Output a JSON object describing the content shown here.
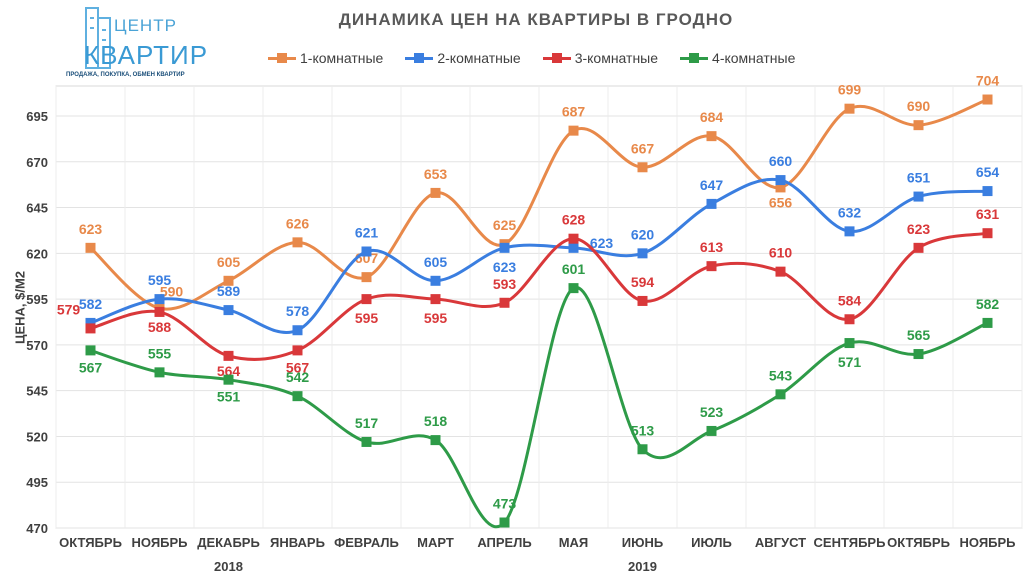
{
  "logo": {
    "line1": "ЦЕНТР",
    "line2": "КВАРТИР",
    "tagline": "ПРОДАЖА, ПОКУПКА, ОБМЕН КВАРТИР"
  },
  "chart_data": {
    "type": "line",
    "title": "ДИНАМИКА ЦЕН НА КВАРТИРЫ В ГРОДНО",
    "ylabel": "ЦЕНА, $/М2",
    "xlabel": "",
    "categories": [
      "ОКТЯБРЬ",
      "НОЯБРЬ",
      "ДЕКАБРЬ",
      "ЯНВАРЬ",
      "ФЕВРАЛЬ",
      "МАРТ",
      "АПРЕЛЬ",
      "МАЯ",
      "ИЮНЬ",
      "ИЮЛЬ",
      "АВГУСТ",
      "СЕНТЯБРЬ",
      "ОКТЯБРЬ",
      "НОЯБРЬ"
    ],
    "year_labels": [
      {
        "text": "2018",
        "category_index": 2
      },
      {
        "text": "2019",
        "category_index": 8
      }
    ],
    "yticks": [
      470,
      495,
      520,
      545,
      570,
      595,
      620,
      645,
      670,
      695
    ],
    "ylim": [
      470,
      700
    ],
    "grid": true,
    "legend": "top",
    "series": [
      {
        "name": "1-комнатные",
        "color": "#e8894a",
        "values": [
          623,
          590,
          605,
          626,
          607,
          653,
          625,
          687,
          667,
          684,
          656,
          699,
          690,
          704
        ]
      },
      {
        "name": "2-комнатные",
        "color": "#3a7ee0",
        "values": [
          582,
          595,
          589,
          578,
          621,
          605,
          623,
          623,
          620,
          647,
          660,
          632,
          651,
          654
        ]
      },
      {
        "name": "3-комнатные",
        "color": "#d9383a",
        "values": [
          579,
          588,
          564,
          567,
          595,
          595,
          593,
          628,
          594,
          613,
          610,
          584,
          623,
          631
        ]
      },
      {
        "name": "4-комнатные",
        "color": "#2e9b48",
        "values": [
          567,
          555,
          551,
          542,
          517,
          518,
          473,
          601,
          513,
          523,
          543,
          571,
          565,
          582
        ]
      }
    ]
  }
}
